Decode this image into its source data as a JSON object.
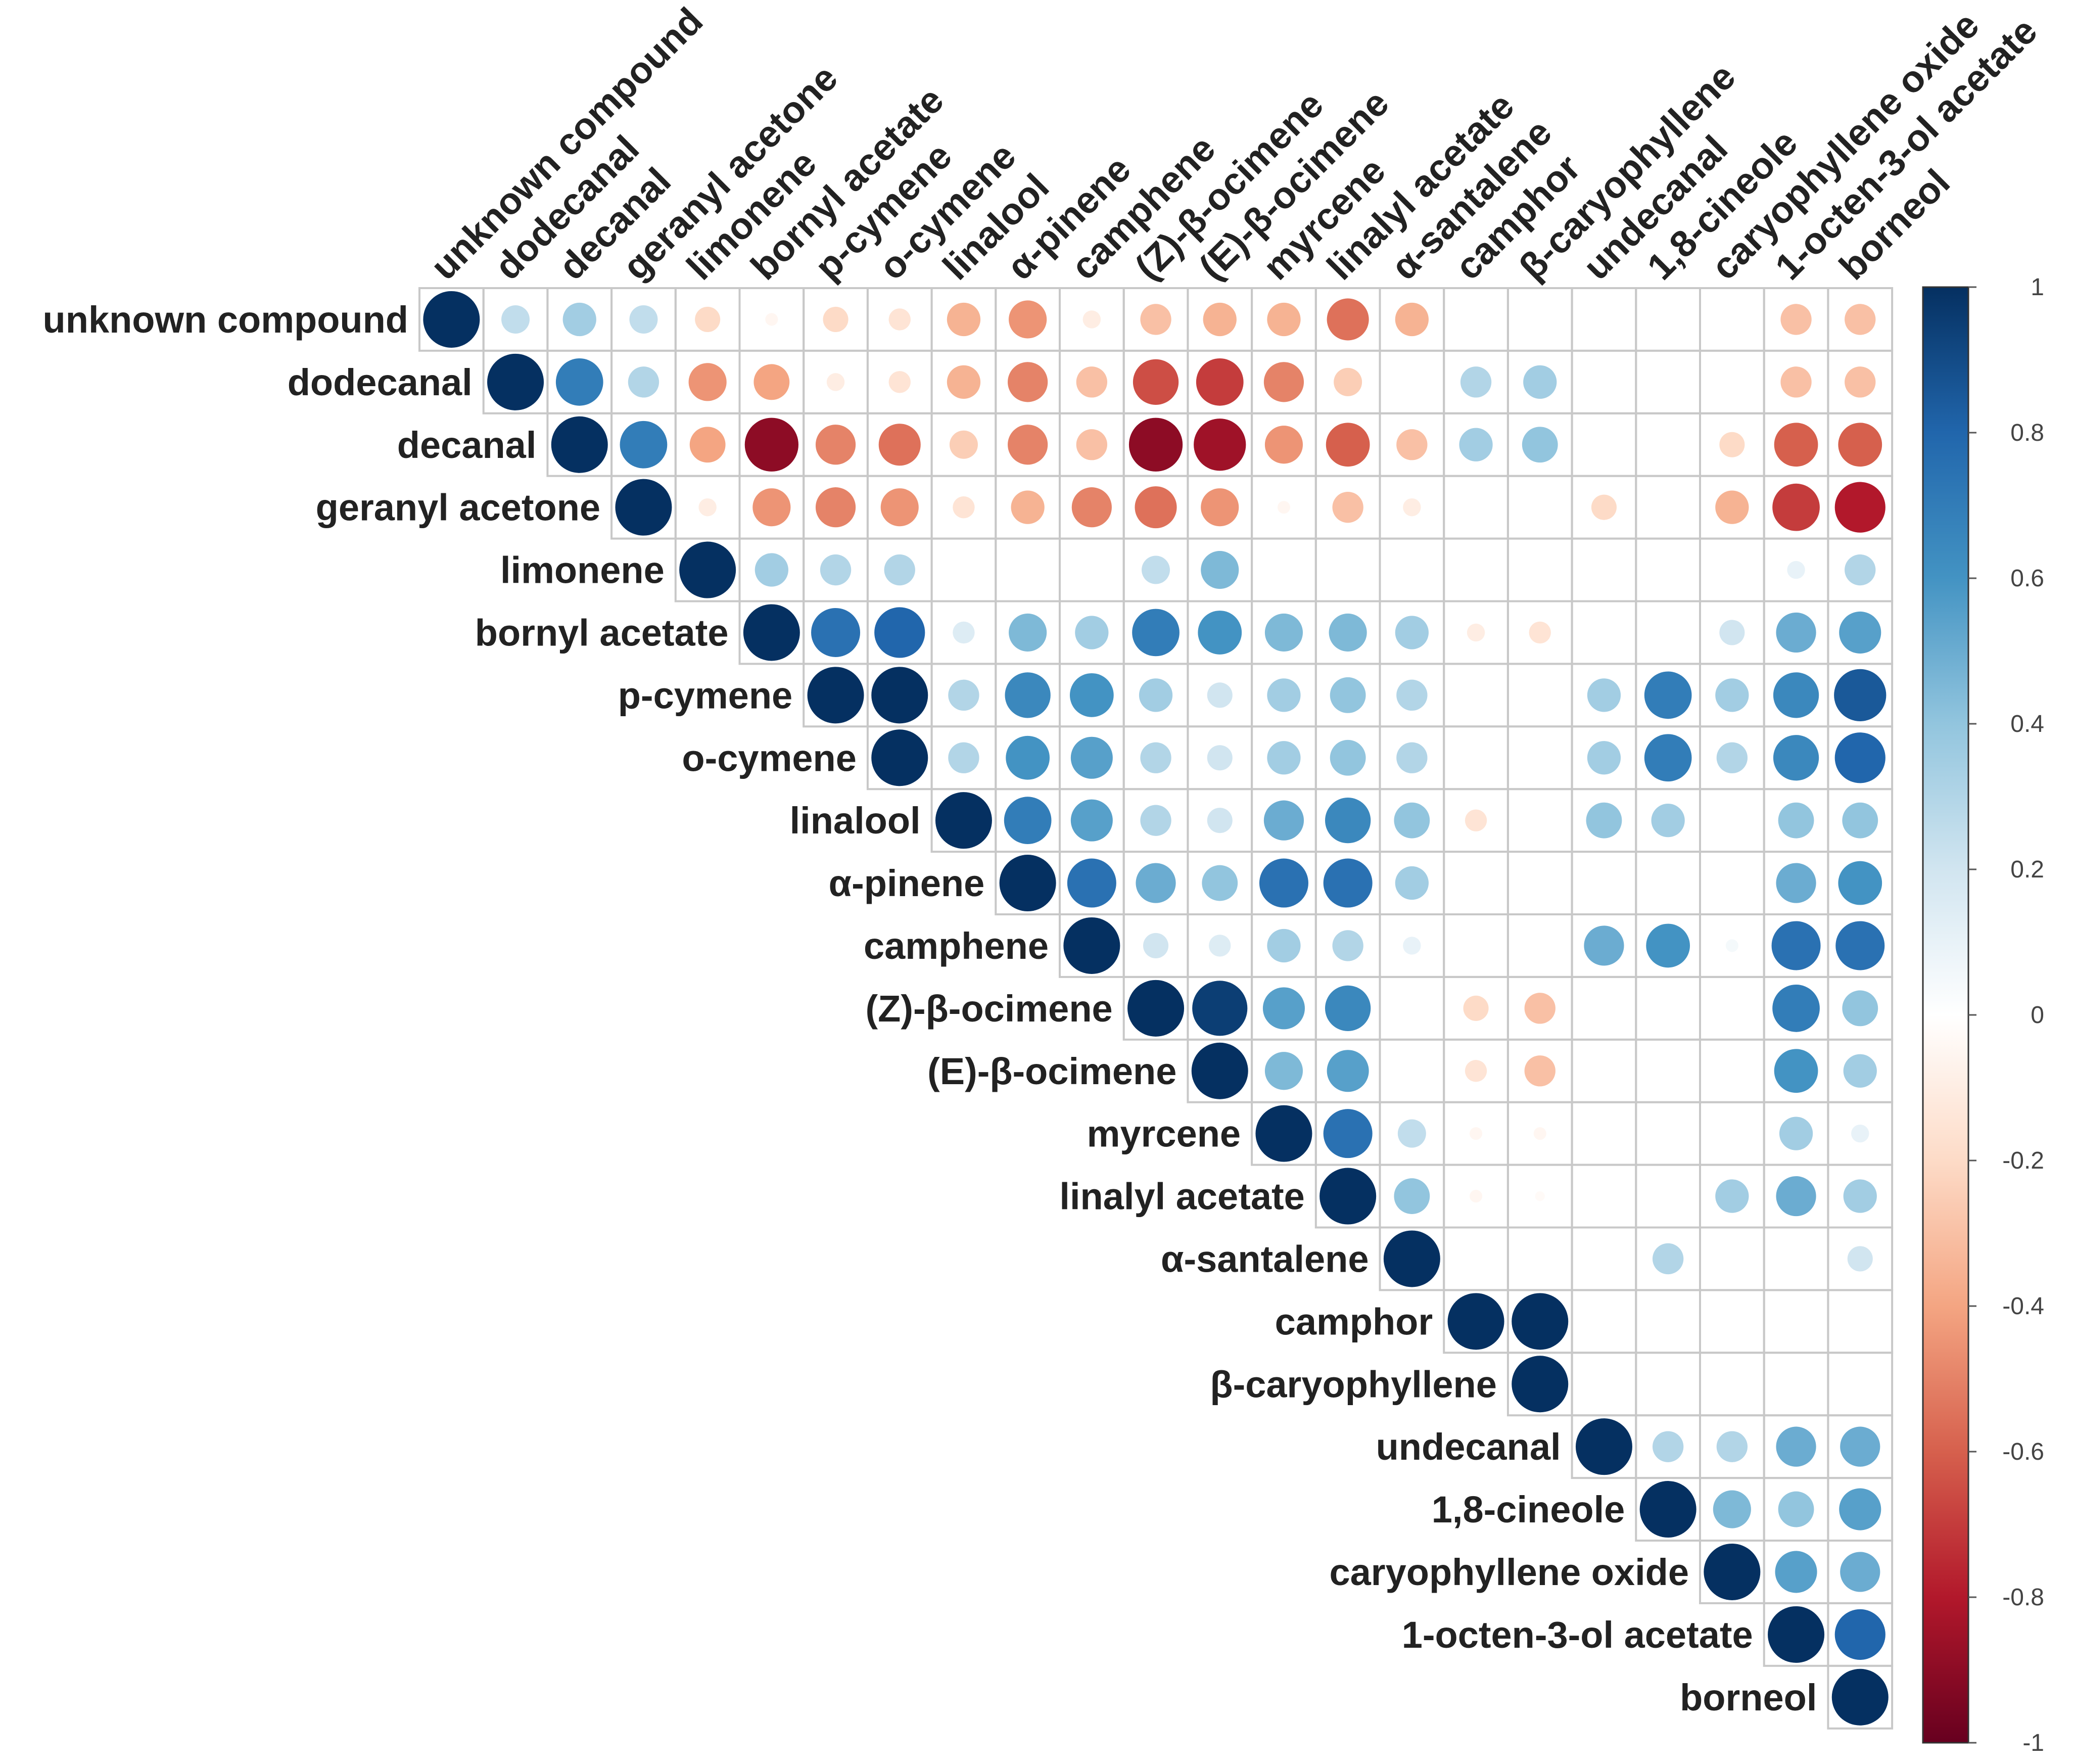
{
  "chart_data": {
    "type": "heatmap",
    "subtype": "correlogram-circle-upper",
    "variables": [
      "unknown compound",
      "dodecanal",
      "decanal",
      "geranyl acetone",
      "limonene",
      "bornyl acetate",
      "p-cymene",
      "o-cymene",
      "linalool",
      "α-pinene",
      "camphene",
      "(Z)-β-ocimene",
      "(E)-β-ocimene",
      "myrcene",
      "linalyl acetate",
      "α-santalene",
      "camphor",
      "β-caryophyllene",
      "undecanal",
      "1,8-cineole",
      "caryophyllene oxide",
      "1-octen-3-ol acetate",
      "borneol"
    ],
    "matrix": [
      [
        1,
        0.25,
        0.35,
        0.25,
        -0.2,
        -0.05,
        -0.2,
        -0.15,
        -0.35,
        -0.45,
        -0.1,
        -0.3,
        -0.35,
        -0.35,
        -0.55,
        -0.35,
        0,
        0,
        0,
        0,
        0,
        -0.3,
        -0.3
      ],
      [
        0.25,
        1,
        0.7,
        0.3,
        -0.45,
        -0.4,
        -0.1,
        -0.15,
        -0.35,
        -0.5,
        -0.3,
        -0.65,
        -0.7,
        -0.5,
        -0.25,
        0,
        0.3,
        0.35,
        0,
        0,
        0,
        -0.3,
        -0.3
      ],
      [
        0.35,
        0.7,
        1,
        0.7,
        -0.4,
        -0.9,
        -0.5,
        -0.55,
        -0.25,
        -0.5,
        -0.3,
        -0.9,
        -0.85,
        -0.45,
        -0.6,
        -0.3,
        0.35,
        0.4,
        0,
        0,
        -0.2,
        -0.6,
        -0.6
      ],
      [
        0.25,
        0.3,
        0.7,
        1,
        -0.1,
        -0.45,
        -0.5,
        -0.45,
        -0.15,
        -0.35,
        -0.5,
        -0.55,
        -0.45,
        -0.05,
        -0.3,
        -0.1,
        0,
        0,
        -0.2,
        0,
        -0.35,
        -0.7,
        -0.8
      ],
      [
        -0.2,
        -0.45,
        -0.4,
        -0.1,
        1,
        0.35,
        0.3,
        0.3,
        0,
        0,
        0,
        0.25,
        0.45,
        0,
        0,
        0,
        0,
        0,
        0,
        0,
        0,
        0.1,
        0.3
      ],
      [
        -0.05,
        -0.4,
        -0.9,
        -0.45,
        0.35,
        1,
        0.75,
        0.8,
        0.15,
        0.45,
        0.35,
        0.7,
        0.6,
        0.45,
        0.45,
        0.35,
        -0.1,
        -0.15,
        0,
        0,
        0.2,
        0.5,
        0.55
      ],
      [
        -0.2,
        -0.1,
        -0.5,
        -0.5,
        0.3,
        0.75,
        1,
        1,
        0.3,
        0.65,
        0.6,
        0.35,
        0.2,
        0.35,
        0.4,
        0.3,
        0,
        0,
        0.35,
        0.7,
        0.35,
        0.65,
        0.85
      ],
      [
        -0.15,
        -0.15,
        -0.55,
        -0.45,
        0.3,
        0.8,
        1,
        1,
        0.3,
        0.6,
        0.55,
        0.3,
        0.2,
        0.35,
        0.4,
        0.3,
        0,
        0,
        0.35,
        0.7,
        0.3,
        0.65,
        0.8
      ],
      [
        -0.35,
        -0.35,
        -0.25,
        -0.15,
        0,
        0.15,
        0.3,
        0.3,
        1,
        0.7,
        0.55,
        0.3,
        0.2,
        0.5,
        0.65,
        0.4,
        -0.15,
        0,
        0.4,
        0.35,
        0,
        0.4,
        0.4
      ],
      [
        -0.45,
        -0.5,
        -0.5,
        -0.35,
        0,
        0.45,
        0.65,
        0.6,
        0.7,
        1,
        0.75,
        0.5,
        0.4,
        0.75,
        0.75,
        0.35,
        0,
        0,
        0,
        0,
        0,
        0.5,
        0.6
      ],
      [
        -0.1,
        -0.3,
        -0.3,
        -0.5,
        0,
        0.35,
        0.6,
        0.55,
        0.55,
        0.75,
        1,
        0.2,
        0.15,
        0.35,
        0.3,
        0.1,
        0,
        0,
        0.5,
        0.6,
        0.05,
        0.75,
        0.75
      ],
      [
        -0.3,
        -0.65,
        -0.9,
        -0.55,
        0.25,
        0.7,
        0.35,
        0.3,
        0.3,
        0.5,
        0.2,
        1,
        0.95,
        0.55,
        0.65,
        0,
        -0.2,
        -0.3,
        0,
        0,
        0,
        0.7,
        0.4
      ],
      [
        -0.35,
        -0.7,
        -0.85,
        -0.45,
        0.45,
        0.6,
        0.2,
        0.2,
        0.2,
        0.4,
        0.15,
        0.95,
        1,
        0.45,
        0.55,
        0,
        -0.15,
        -0.3,
        0,
        0,
        0,
        0.6,
        0.35
      ],
      [
        -0.35,
        -0.5,
        -0.45,
        -0.05,
        0,
        0.45,
        0.35,
        0.35,
        0.5,
        0.75,
        0.35,
        0.55,
        0.45,
        1,
        0.75,
        0.25,
        -0.05,
        -0.05,
        0,
        0,
        0,
        0.35,
        0.1
      ],
      [
        -0.55,
        -0.25,
        -0.6,
        -0.3,
        0,
        0.45,
        0.4,
        0.4,
        0.65,
        0.75,
        0.3,
        0.65,
        0.55,
        0.75,
        1,
        0.4,
        -0.05,
        -0.03,
        0,
        0,
        0.35,
        0.5,
        0.35
      ],
      [
        -0.35,
        0,
        -0.3,
        -0.1,
        0,
        0.35,
        0.3,
        0.3,
        0.4,
        0.35,
        0.1,
        0,
        0,
        0.25,
        0.4,
        1,
        0,
        0,
        0,
        0.3,
        0,
        0,
        0.2
      ],
      [
        0,
        0.3,
        0.35,
        0,
        0,
        -0.1,
        0,
        0,
        -0.15,
        0,
        0,
        -0.2,
        -0.15,
        -0.05,
        -0.05,
        0,
        1,
        1,
        0,
        0,
        0,
        0,
        0
      ],
      [
        0,
        0.35,
        0.4,
        0,
        0,
        -0.15,
        0,
        0,
        0,
        0,
        0,
        -0.3,
        -0.3,
        -0.05,
        -0.03,
        0,
        1,
        1,
        0,
        0,
        0,
        0,
        0
      ],
      [
        0,
        0,
        0,
        -0.2,
        0,
        0,
        0.35,
        0.35,
        0.4,
        0,
        0.5,
        0,
        0,
        0,
        0,
        0,
        0,
        0,
        1,
        0.3,
        0.3,
        0.5,
        0.5
      ],
      [
        0,
        0,
        0,
        0,
        0,
        0,
        0.7,
        0.7,
        0.35,
        0,
        0.6,
        0,
        0,
        0,
        0,
        0.3,
        0,
        0,
        0.3,
        1,
        0.45,
        0.4,
        0.55
      ],
      [
        0,
        0,
        -0.2,
        -0.35,
        0,
        0.2,
        0.35,
        0.3,
        0,
        0,
        0.05,
        0,
        0,
        0,
        0.35,
        0,
        0,
        0,
        0.3,
        0.45,
        1,
        0.55,
        0.5
      ],
      [
        -0.3,
        -0.3,
        -0.6,
        -0.7,
        0.1,
        0.5,
        0.65,
        0.65,
        0.4,
        0.5,
        0.75,
        0.7,
        0.6,
        0.35,
        0.5,
        0,
        0,
        0,
        0.5,
        0.4,
        0.55,
        1,
        0.8
      ],
      [
        -0.3,
        -0.3,
        -0.6,
        -0.8,
        0.3,
        0.55,
        0.85,
        0.8,
        0.4,
        0.6,
        0.75,
        0.4,
        0.35,
        0.1,
        0.35,
        0.2,
        0,
        0,
        0.5,
        0.55,
        0.5,
        0.8,
        1
      ]
    ],
    "colorbar": {
      "range": [
        -1,
        1
      ],
      "ticks": [
        "1",
        "0.8",
        "0.6",
        "0.4",
        "0.2",
        "0",
        "-0.2",
        "-0.4",
        "-0.6",
        "-0.8",
        "-1"
      ],
      "colors": [
        "#67001f",
        "#b2182b",
        "#d6604d",
        "#f4a582",
        "#fddbc7",
        "#ffffff",
        "#d1e5f0",
        "#92c5de",
        "#4393c3",
        "#2166ac",
        "#053061"
      ]
    }
  }
}
